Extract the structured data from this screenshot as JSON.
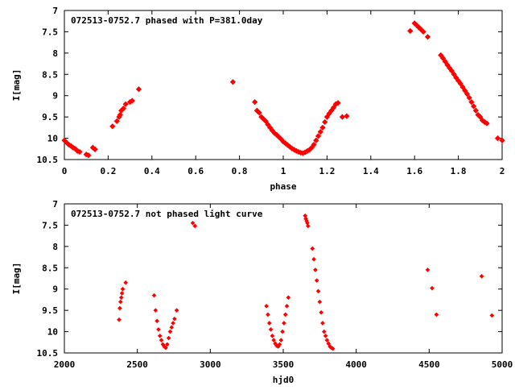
{
  "chart_data": [
    {
      "type": "scatter",
      "title": "072513-0752.7 phased with P=381.0day",
      "xlabel": "phase",
      "ylabel": "I[mag]",
      "xlim": [
        0,
        2
      ],
      "ylim": [
        7,
        10.5
      ],
      "y_inverted": true,
      "x_ticks": [
        0,
        0.2,
        0.4,
        0.6,
        0.8,
        1,
        1.2,
        1.4,
        1.6,
        1.8,
        2
      ],
      "x_tick_labels": [
        "0",
        "0.2",
        "0.4",
        "0.6",
        "0.8",
        "1",
        "1.2",
        "1.4",
        "1.6",
        "1.8",
        "2"
      ],
      "y_ticks": [
        7,
        7.5,
        8,
        8.5,
        9,
        9.5,
        10,
        10.5
      ],
      "y_tick_labels": [
        "7",
        "7.5",
        "8",
        "8.5",
        "9",
        "9.5",
        "10",
        "10.5"
      ],
      "marker": "diamond",
      "color": "#ff0000",
      "grid": false,
      "legend": "none",
      "points": [
        [
          0.0,
          10.05
        ],
        [
          0.01,
          10.1
        ],
        [
          0.02,
          10.15
        ],
        [
          0.03,
          10.18
        ],
        [
          0.04,
          10.22
        ],
        [
          0.05,
          10.25
        ],
        [
          0.06,
          10.3
        ],
        [
          0.07,
          10.32
        ],
        [
          0.1,
          10.38
        ],
        [
          0.11,
          10.4
        ],
        [
          0.13,
          10.22
        ],
        [
          0.14,
          10.26
        ],
        [
          0.22,
          9.72
        ],
        [
          0.24,
          9.6
        ],
        [
          0.25,
          9.5
        ],
        [
          0.255,
          9.45
        ],
        [
          0.26,
          9.35
        ],
        [
          0.27,
          9.3
        ],
        [
          0.28,
          9.2
        ],
        [
          0.3,
          9.15
        ],
        [
          0.31,
          9.12
        ],
        [
          0.34,
          8.85
        ],
        [
          0.77,
          8.68
        ],
        [
          0.87,
          9.15
        ],
        [
          0.88,
          9.35
        ],
        [
          0.89,
          9.4
        ],
        [
          0.9,
          9.5
        ],
        [
          0.91,
          9.55
        ],
        [
          0.92,
          9.6
        ],
        [
          0.93,
          9.68
        ],
        [
          0.94,
          9.75
        ],
        [
          0.95,
          9.82
        ],
        [
          0.96,
          9.88
        ],
        [
          0.97,
          9.92
        ],
        [
          0.98,
          9.97
        ],
        [
          0.99,
          10.02
        ],
        [
          1.0,
          10.08
        ],
        [
          1.01,
          10.12
        ],
        [
          1.02,
          10.16
        ],
        [
          1.03,
          10.2
        ],
        [
          1.04,
          10.24
        ],
        [
          1.05,
          10.27
        ],
        [
          1.06,
          10.3
        ],
        [
          1.07,
          10.32
        ],
        [
          1.08,
          10.34
        ],
        [
          1.09,
          10.35
        ],
        [
          1.1,
          10.33
        ],
        [
          1.11,
          10.3
        ],
        [
          1.12,
          10.27
        ],
        [
          1.13,
          10.22
        ],
        [
          1.14,
          10.15
        ],
        [
          1.15,
          10.05
        ],
        [
          1.16,
          9.95
        ],
        [
          1.17,
          9.85
        ],
        [
          1.18,
          9.75
        ],
        [
          1.19,
          9.62
        ],
        [
          1.2,
          9.5
        ],
        [
          1.21,
          9.42
        ],
        [
          1.22,
          9.35
        ],
        [
          1.23,
          9.28
        ],
        [
          1.24,
          9.2
        ],
        [
          1.25,
          9.17
        ],
        [
          1.27,
          9.5
        ],
        [
          1.29,
          9.48
        ],
        [
          1.58,
          7.48
        ],
        [
          1.6,
          7.3
        ],
        [
          1.61,
          7.35
        ],
        [
          1.62,
          7.4
        ],
        [
          1.63,
          7.45
        ],
        [
          1.64,
          7.5
        ],
        [
          1.66,
          7.62
        ],
        [
          1.72,
          8.05
        ],
        [
          1.73,
          8.12
        ],
        [
          1.74,
          8.2
        ],
        [
          1.75,
          8.28
        ],
        [
          1.76,
          8.35
        ],
        [
          1.77,
          8.42
        ],
        [
          1.78,
          8.5
        ],
        [
          1.79,
          8.58
        ],
        [
          1.8,
          8.65
        ],
        [
          1.81,
          8.72
        ],
        [
          1.82,
          8.8
        ],
        [
          1.83,
          8.88
        ],
        [
          1.84,
          8.96
        ],
        [
          1.85,
          9.05
        ],
        [
          1.86,
          9.15
        ],
        [
          1.87,
          9.25
        ],
        [
          1.88,
          9.35
        ],
        [
          1.89,
          9.45
        ],
        [
          1.9,
          9.5
        ],
        [
          1.91,
          9.58
        ],
        [
          1.92,
          9.62
        ],
        [
          1.93,
          9.65
        ],
        [
          1.98,
          10.0
        ],
        [
          2.0,
          10.05
        ]
      ]
    },
    {
      "type": "scatter",
      "title": "072513-0752.7 not phased light curve",
      "xlabel": "hjd0",
      "ylabel": "I[mag]",
      "xlim": [
        2000,
        5000
      ],
      "ylim": [
        7,
        10.5
      ],
      "y_inverted": true,
      "x_ticks": [
        2000,
        2500,
        3000,
        3500,
        4000,
        4500,
        5000
      ],
      "x_tick_labels": [
        "2000",
        "2500",
        "3000",
        "3500",
        "4000",
        "4500",
        "5000"
      ],
      "y_ticks": [
        7,
        7.5,
        8,
        8.5,
        9,
        9.5,
        10,
        10.5
      ],
      "y_tick_labels": [
        "7",
        "7.5",
        "8",
        "8.5",
        "9",
        "9.5",
        "10",
        "10.5"
      ],
      "marker": "diamond",
      "color": "#ff0000",
      "grid": false,
      "legend": "none",
      "points": [
        [
          2375,
          9.72
        ],
        [
          2380,
          9.45
        ],
        [
          2385,
          9.3
        ],
        [
          2390,
          9.2
        ],
        [
          2395,
          9.1
        ],
        [
          2400,
          9.0
        ],
        [
          2420,
          8.85
        ],
        [
          2615,
          9.15
        ],
        [
          2625,
          9.5
        ],
        [
          2635,
          9.75
        ],
        [
          2645,
          9.95
        ],
        [
          2655,
          10.1
        ],
        [
          2665,
          10.2
        ],
        [
          2675,
          10.3
        ],
        [
          2685,
          10.35
        ],
        [
          2695,
          10.38
        ],
        [
          2705,
          10.3
        ],
        [
          2715,
          10.15
        ],
        [
          2725,
          10.0
        ],
        [
          2735,
          9.9
        ],
        [
          2745,
          9.8
        ],
        [
          2755,
          9.7
        ],
        [
          2770,
          9.5
        ],
        [
          2880,
          7.45
        ],
        [
          2895,
          7.52
        ],
        [
          3385,
          9.4
        ],
        [
          3395,
          9.6
        ],
        [
          3405,
          9.8
        ],
        [
          3415,
          9.95
        ],
        [
          3425,
          10.1
        ],
        [
          3435,
          10.2
        ],
        [
          3445,
          10.28
        ],
        [
          3455,
          10.33
        ],
        [
          3465,
          10.35
        ],
        [
          3475,
          10.3
        ],
        [
          3485,
          10.2
        ],
        [
          3495,
          10.0
        ],
        [
          3505,
          9.8
        ],
        [
          3515,
          9.6
        ],
        [
          3525,
          9.4
        ],
        [
          3535,
          9.2
        ],
        [
          3650,
          7.28
        ],
        [
          3655,
          7.35
        ],
        [
          3660,
          7.4
        ],
        [
          3665,
          7.45
        ],
        [
          3670,
          7.52
        ],
        [
          3700,
          8.05
        ],
        [
          3710,
          8.3
        ],
        [
          3720,
          8.55
        ],
        [
          3730,
          8.8
        ],
        [
          3740,
          9.05
        ],
        [
          3750,
          9.3
        ],
        [
          3760,
          9.55
        ],
        [
          3770,
          9.8
        ],
        [
          3780,
          10.0
        ],
        [
          3790,
          10.1
        ],
        [
          3800,
          10.2
        ],
        [
          3810,
          10.28
        ],
        [
          3820,
          10.35
        ],
        [
          3830,
          10.38
        ],
        [
          3840,
          10.4
        ],
        [
          4490,
          8.55
        ],
        [
          4520,
          8.98
        ],
        [
          4550,
          9.6
        ],
        [
          4860,
          8.7
        ],
        [
          4930,
          9.62
        ]
      ]
    }
  ]
}
